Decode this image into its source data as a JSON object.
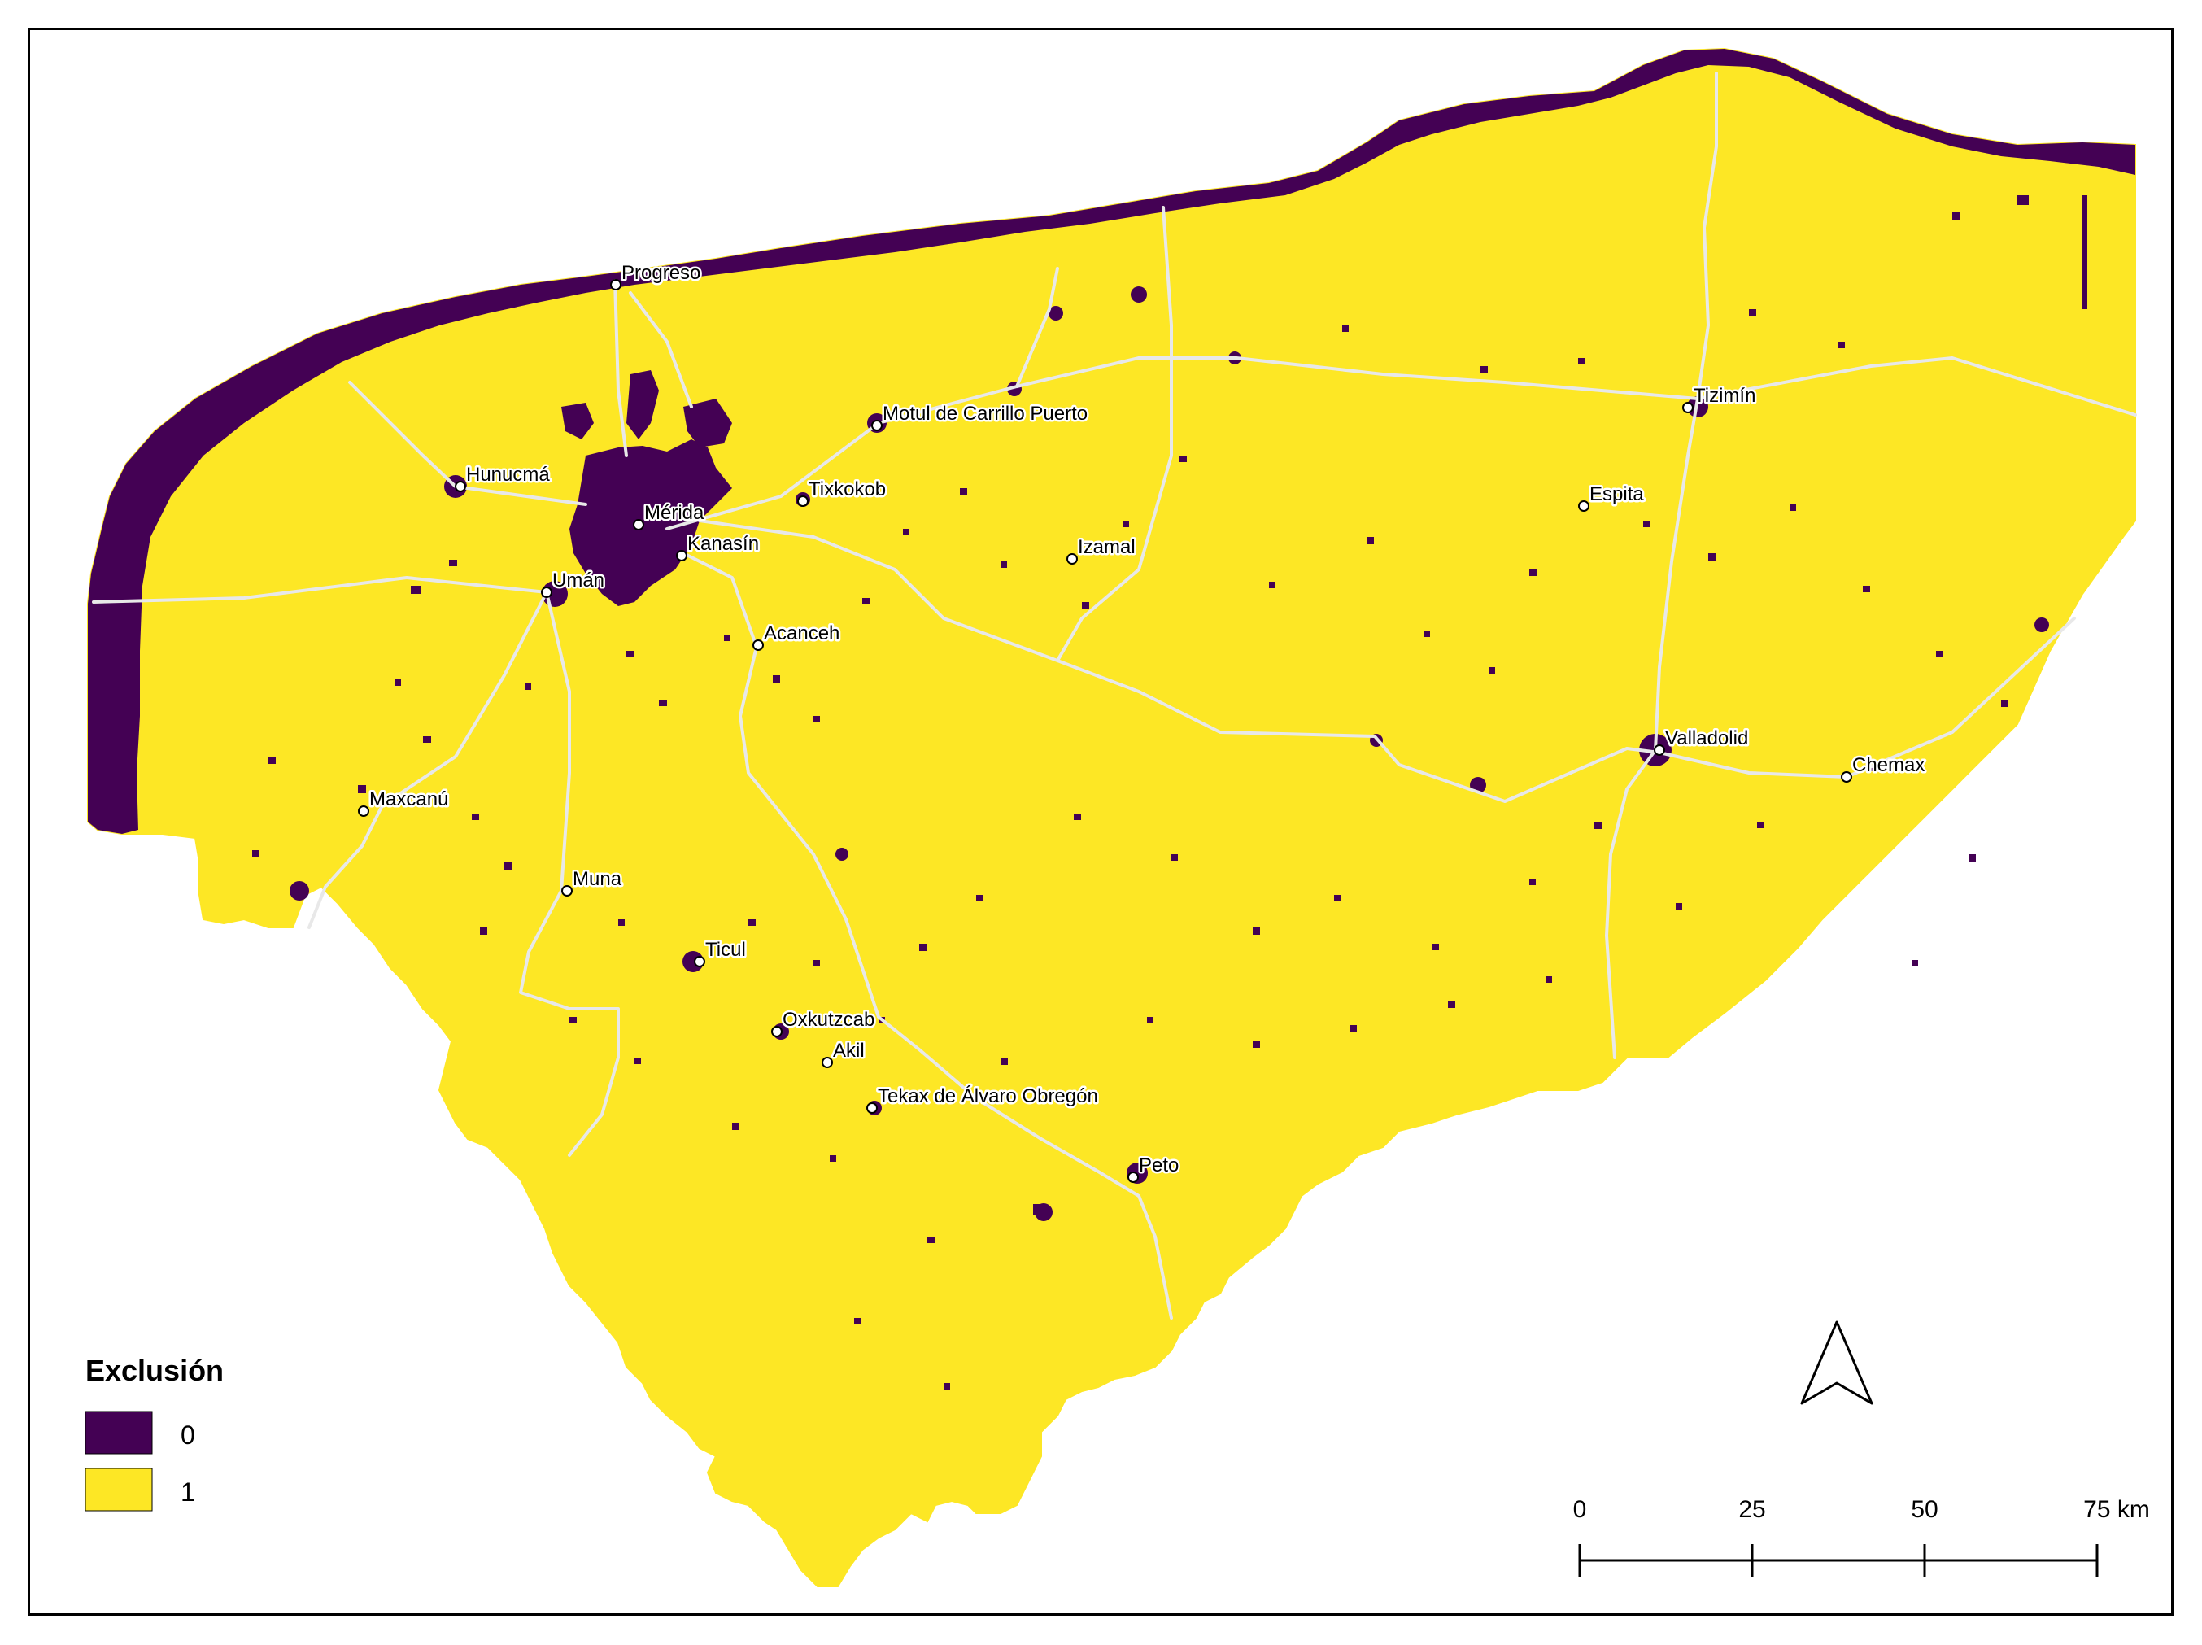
{
  "map": {
    "colors": {
      "class_1": "#fde725",
      "class_0": "#440154",
      "roads": "#e8e8e8",
      "background": "#ffffff"
    },
    "cities": [
      {
        "name": "Progreso"
      },
      {
        "name": "Hunucmá"
      },
      {
        "name": "Mérida"
      },
      {
        "name": "Kanasín"
      },
      {
        "name": "Umán"
      },
      {
        "name": "Tixkokob"
      },
      {
        "name": "Motul de Carrillo Puerto"
      },
      {
        "name": "Izamal"
      },
      {
        "name": "Acanceh"
      },
      {
        "name": "Maxcanú"
      },
      {
        "name": "Muna"
      },
      {
        "name": "Ticul"
      },
      {
        "name": "Oxkutzcab"
      },
      {
        "name": "Akil"
      },
      {
        "name": "Tekax de Álvaro Obregón"
      },
      {
        "name": "Peto"
      },
      {
        "name": "Tizimín"
      },
      {
        "name": "Espita"
      },
      {
        "name": "Valladolid"
      },
      {
        "name": "Chemax"
      }
    ]
  },
  "legend": {
    "title": "Exclusión",
    "items": [
      {
        "label": "0",
        "color": "#440154"
      },
      {
        "label": "1",
        "color": "#fde725"
      }
    ]
  },
  "scale_bar": {
    "ticks": [
      "0",
      "25",
      "50",
      "75 km"
    ]
  },
  "north_arrow": {
    "icon": "north-arrow-icon"
  }
}
